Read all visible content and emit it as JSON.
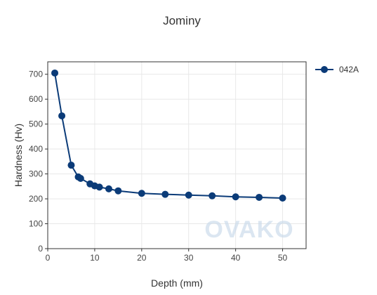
{
  "chart_data": {
    "type": "line",
    "title": "Jominy",
    "xlabel": "Depth (mm)",
    "ylabel": "Hardness (Hv)",
    "xlim": [
      0,
      55
    ],
    "ylim": [
      0,
      750
    ],
    "xticks": [
      0,
      10,
      20,
      30,
      40,
      50
    ],
    "yticks": [
      0,
      100,
      200,
      300,
      400,
      500,
      600,
      700
    ],
    "grid": true,
    "legend_position": "top-right",
    "series": [
      {
        "name": "042A",
        "color": "#0b3b78",
        "x": [
          1.5,
          3,
          5,
          6.5,
          7,
          9,
          10,
          11,
          13,
          15,
          20,
          25,
          30,
          35,
          40,
          45,
          50
        ],
        "y": [
          705,
          533,
          335,
          288,
          282,
          260,
          252,
          247,
          240,
          232,
          222,
          218,
          215,
          212,
          208,
          206,
          203
        ]
      }
    ]
  },
  "watermark": {
    "text": "OVAKO"
  }
}
